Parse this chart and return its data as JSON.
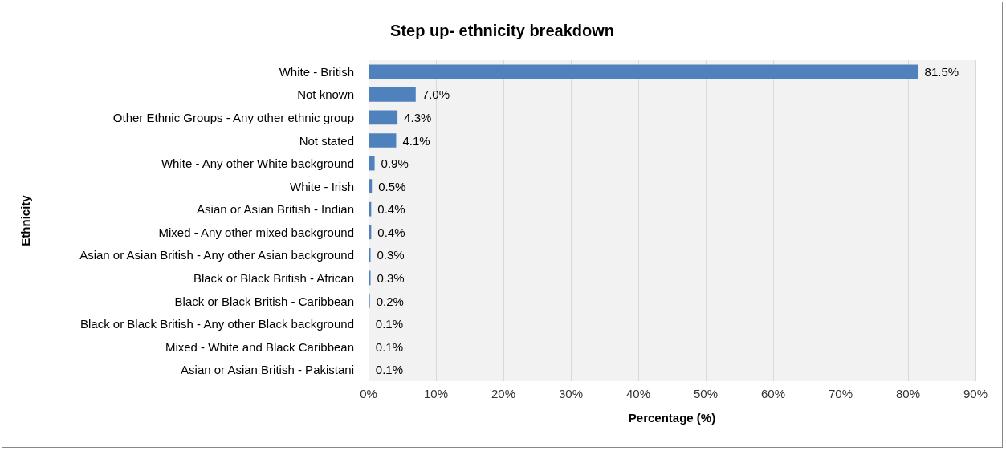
{
  "chart_data": {
    "type": "bar",
    "orientation": "horizontal",
    "title": "Step up- ethnicity breakdown",
    "xlabel": "Percentage (%)",
    "ylabel": "Ethnicity",
    "categories": [
      "White - British",
      "Not known",
      "Other Ethnic Groups - Any other ethnic group",
      "Not stated",
      "White - Any other White background",
      "White - Irish",
      "Asian or Asian British - Indian",
      "Mixed - Any other mixed background",
      "Asian or Asian British - Any other Asian background",
      "Black or Black British - African",
      "Black or Black British - Caribbean",
      "Black or Black British - Any other Black background",
      "Mixed - White and Black Caribbean",
      "Asian or Asian British - Pakistani"
    ],
    "values": [
      81.5,
      7.0,
      4.3,
      4.1,
      0.9,
      0.5,
      0.4,
      0.4,
      0.3,
      0.3,
      0.2,
      0.1,
      0.1,
      0.1
    ],
    "value_labels": [
      "81.5%",
      "7.0%",
      "4.3%",
      "4.1%",
      "0.9%",
      "0.5%",
      "0.4%",
      "0.4%",
      "0.3%",
      "0.3%",
      "0.2%",
      "0.1%",
      "0.1%",
      "0.1%"
    ],
    "color": "#4f81bd",
    "xlim": [
      0,
      90
    ],
    "xticks": [
      {
        "value": 0,
        "label": "0%"
      },
      {
        "value": 10,
        "label": "10%"
      },
      {
        "value": 20,
        "label": "20%"
      },
      {
        "value": 30,
        "label": "30%"
      },
      {
        "value": 40,
        "label": "40%"
      },
      {
        "value": 50,
        "label": "50%"
      },
      {
        "value": 60,
        "label": "60%"
      },
      {
        "value": 70,
        "label": "70%"
      },
      {
        "value": 80,
        "label": "80%"
      },
      {
        "value": 90,
        "label": "90%"
      }
    ],
    "grid": "x"
  }
}
